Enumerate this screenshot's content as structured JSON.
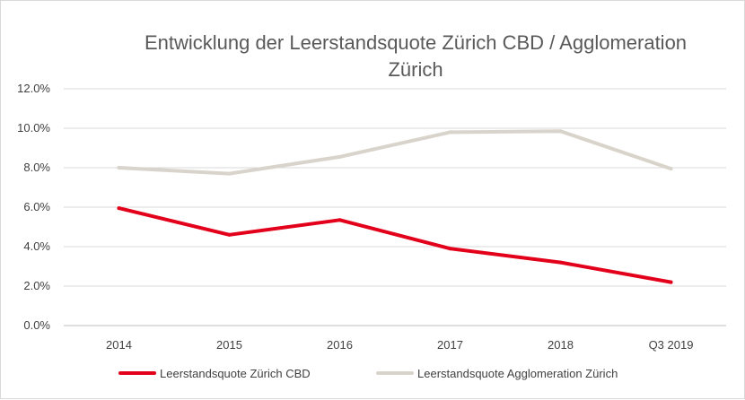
{
  "chart_data": {
    "type": "line",
    "title_lines": [
      "Entwicklung der Leerstandsquote Zürich CBD / Agglomeration",
      "Zürich"
    ],
    "categories": [
      "2014",
      "2015",
      "2016",
      "2017",
      "2018",
      "Q3 2019"
    ],
    "y_ticks": [
      "0.0%",
      "2.0%",
      "4.0%",
      "6.0%",
      "8.0%",
      "10.0%",
      "12.0%"
    ],
    "ylim": [
      0,
      12
    ],
    "grid": true,
    "legend_position": "bottom",
    "series": [
      {
        "name": "Leerstandsquote Zürich CBD",
        "color": "#e3001b",
        "values": [
          5.95,
          4.6,
          5.35,
          3.9,
          3.2,
          2.2
        ]
      },
      {
        "name": "Leerstandsquote Agglomeration Zürich",
        "color": "#d9d4cb",
        "values": [
          8.0,
          7.7,
          8.55,
          9.8,
          9.85,
          7.95
        ]
      }
    ]
  }
}
